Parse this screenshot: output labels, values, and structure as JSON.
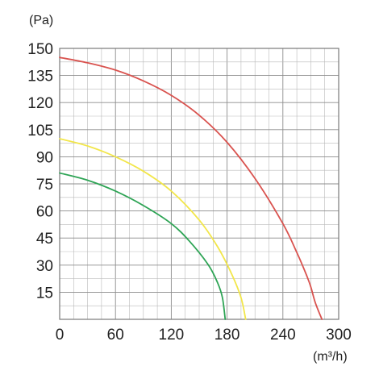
{
  "chart_data": {
    "type": "line",
    "ylabel": "(Pa)",
    "xlabel": "(m³/h)",
    "xlim": [
      0,
      300
    ],
    "ylim": [
      0,
      150
    ],
    "x_ticks": [
      "0",
      "60",
      "120",
      "180",
      "240",
      "300"
    ],
    "y_ticks": [
      "150",
      "135",
      "120",
      "105",
      "90",
      "75",
      "60",
      "45",
      "30",
      "15"
    ],
    "grid": true,
    "series": [
      {
        "color": "#d9534f",
        "points": [
          [
            0,
            145
          ],
          [
            30,
            142
          ],
          [
            60,
            138
          ],
          [
            90,
            132
          ],
          [
            120,
            124
          ],
          [
            150,
            113
          ],
          [
            180,
            98
          ],
          [
            210,
            78
          ],
          [
            240,
            53
          ],
          [
            255,
            37
          ],
          [
            265,
            25
          ],
          [
            270,
            18
          ],
          [
            275,
            9
          ],
          [
            282,
            0
          ]
        ]
      },
      {
        "color": "#f2e64a",
        "points": [
          [
            0,
            100
          ],
          [
            30,
            96
          ],
          [
            60,
            90
          ],
          [
            90,
            82
          ],
          [
            120,
            71
          ],
          [
            150,
            55
          ],
          [
            170,
            40
          ],
          [
            185,
            25
          ],
          [
            195,
            12
          ],
          [
            200,
            0
          ]
        ]
      },
      {
        "color": "#2ea455",
        "points": [
          [
            0,
            81
          ],
          [
            30,
            77
          ],
          [
            60,
            71
          ],
          [
            90,
            63
          ],
          [
            120,
            53
          ],
          [
            140,
            43
          ],
          [
            160,
            30
          ],
          [
            170,
            20
          ],
          [
            175,
            12
          ],
          [
            178,
            0
          ]
        ]
      }
    ]
  }
}
